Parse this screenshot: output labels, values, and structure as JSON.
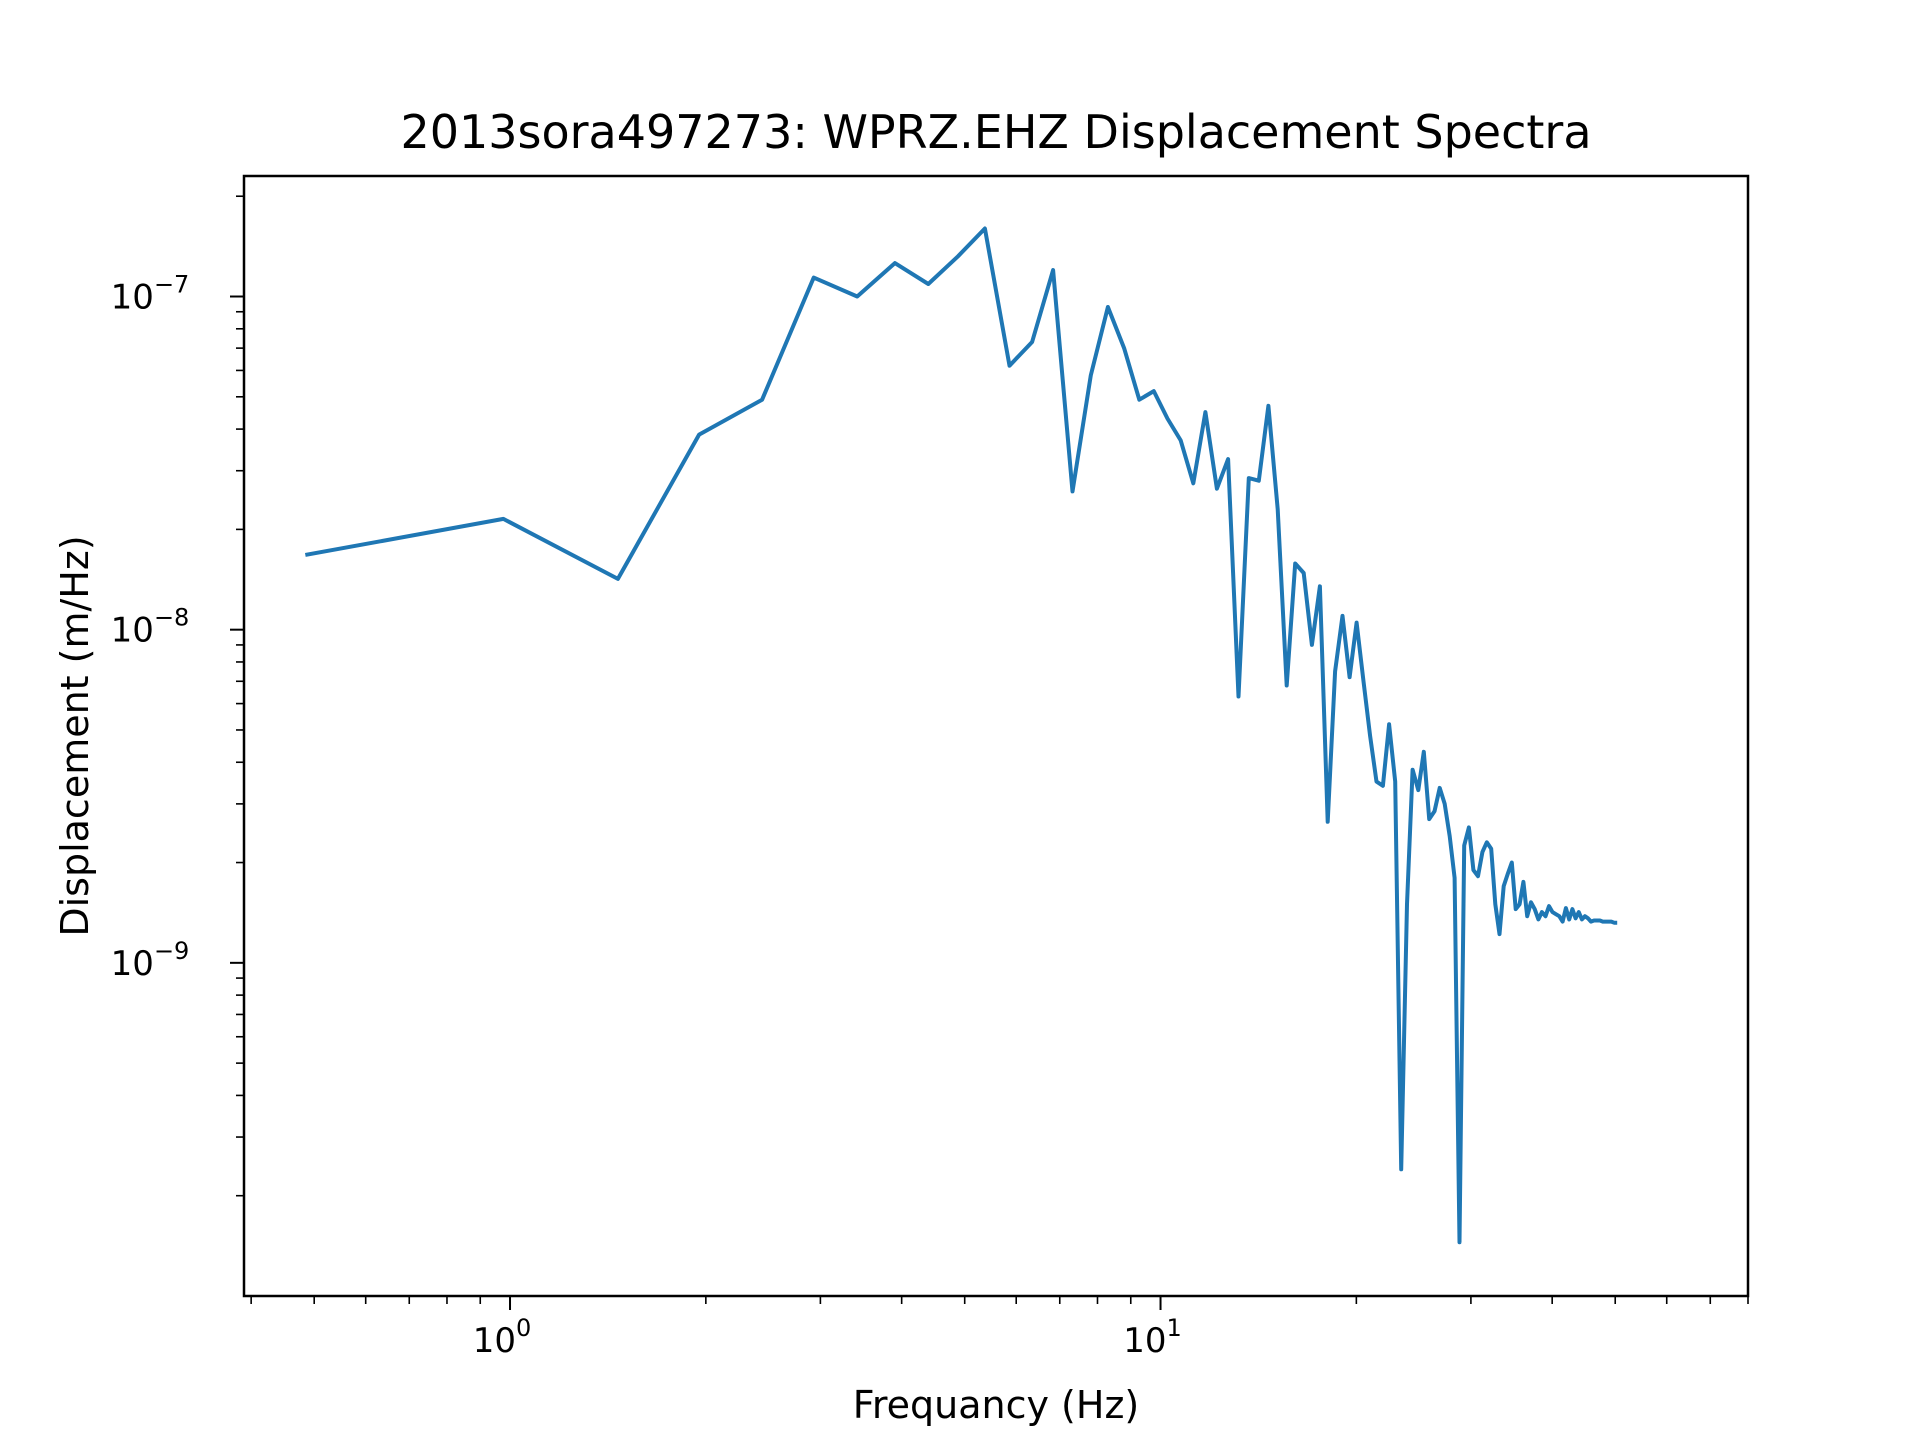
{
  "chart_data": {
    "type": "line",
    "title": "2013sora497273: WPRZ.EHZ Displacement Spectra",
    "xlabel": "Frequancy (Hz)",
    "ylabel": "Displacement (m/Hz)",
    "x_scale": "log",
    "y_scale": "log",
    "xlim": [
      0.39,
      80
    ],
    "ylim": [
      1e-10,
      2.3e-07
    ],
    "grid": false,
    "line_color": "#1f77b4",
    "x_ticks": [
      {
        "value": 1,
        "base": "10",
        "exp": "0"
      },
      {
        "value": 10,
        "base": "10",
        "exp": "1"
      }
    ],
    "y_ticks": [
      {
        "value": 1e-07,
        "base": "10",
        "exp": "−7"
      },
      {
        "value": 1e-08,
        "base": "10",
        "exp": "−8"
      },
      {
        "value": 1e-09,
        "base": "10",
        "exp": "−9"
      }
    ],
    "series": [
      {
        "x": [
          0.488,
          0.977,
          1.465,
          1.953,
          2.441,
          2.93,
          3.418,
          3.906,
          4.395,
          4.883,
          5.371,
          5.859,
          6.348,
          6.836,
          7.324,
          7.813,
          8.301,
          8.789,
          9.277,
          9.766,
          10.25,
          10.74,
          11.23,
          11.72,
          12.21,
          12.7,
          13.18,
          13.67,
          14.16,
          14.65,
          15.14,
          15.63,
          16.11,
          16.6,
          17.09,
          17.58,
          18.07,
          18.55,
          19.04,
          19.53,
          20.02,
          20.51,
          21.0,
          21.48,
          21.97,
          22.46,
          22.95,
          23.44,
          23.93,
          24.41,
          24.9,
          25.39,
          25.88,
          26.37,
          26.86,
          27.34,
          27.83,
          28.32,
          28.81,
          29.3,
          29.79,
          30.27,
          30.76,
          31.25,
          31.74,
          32.23,
          32.71,
          33.2,
          33.69,
          34.18,
          34.67,
          35.16,
          35.64,
          36.13,
          36.62,
          37.11,
          37.6,
          38.09,
          38.57,
          39.06,
          39.55,
          40.04,
          40.53,
          41.02,
          41.5,
          41.99,
          42.48,
          42.97,
          43.46,
          43.95,
          44.43,
          44.92,
          45.41,
          45.9,
          46.39,
          46.88,
          47.36,
          47.85,
          48.34,
          48.83,
          49.32,
          49.8,
          50.0
        ],
        "y": [
          1.68e-08,
          2.15e-08,
          1.42e-08,
          3.85e-08,
          4.9e-08,
          1.14e-07,
          1e-07,
          1.26e-07,
          1.09e-07,
          1.32e-07,
          1.6e-07,
          6.2e-08,
          7.3e-08,
          1.2e-07,
          2.6e-08,
          5.8e-08,
          9.3e-08,
          7e-08,
          4.9e-08,
          5.2e-08,
          4.3e-08,
          3.7e-08,
          2.75e-08,
          4.5e-08,
          2.65e-08,
          3.25e-08,
          6.3e-09,
          2.85e-08,
          2.8e-08,
          4.7e-08,
          2.3e-08,
          6.8e-09,
          1.58e-08,
          1.48e-08,
          9e-09,
          1.35e-08,
          2.65e-09,
          7.5e-09,
          1.1e-08,
          7.2e-09,
          1.05e-08,
          7e-09,
          4.8e-09,
          3.5e-09,
          3.4e-09,
          5.2e-09,
          3.5e-09,
          2.4e-10,
          1.5e-09,
          3.8e-09,
          3.3e-09,
          4.3e-09,
          2.7e-09,
          2.85e-09,
          3.35e-09,
          3e-09,
          2.4e-09,
          1.8e-09,
          1.45e-10,
          2.25e-09,
          2.55e-09,
          1.9e-09,
          1.82e-09,
          2.15e-09,
          2.3e-09,
          2.2e-09,
          1.5e-09,
          1.22e-09,
          1.7e-09,
          1.85e-09,
          2e-09,
          1.45e-09,
          1.5e-09,
          1.75e-09,
          1.38e-09,
          1.52e-09,
          1.45e-09,
          1.35e-09,
          1.42e-09,
          1.38e-09,
          1.48e-09,
          1.42e-09,
          1.4e-09,
          1.38e-09,
          1.33e-09,
          1.46e-09,
          1.35e-09,
          1.45e-09,
          1.36e-09,
          1.42e-09,
          1.35e-09,
          1.38e-09,
          1.36e-09,
          1.33e-09,
          1.34e-09,
          1.34e-09,
          1.34e-09,
          1.33e-09,
          1.33e-09,
          1.33e-09,
          1.33e-09,
          1.32e-09,
          1.32e-09
        ]
      }
    ]
  }
}
